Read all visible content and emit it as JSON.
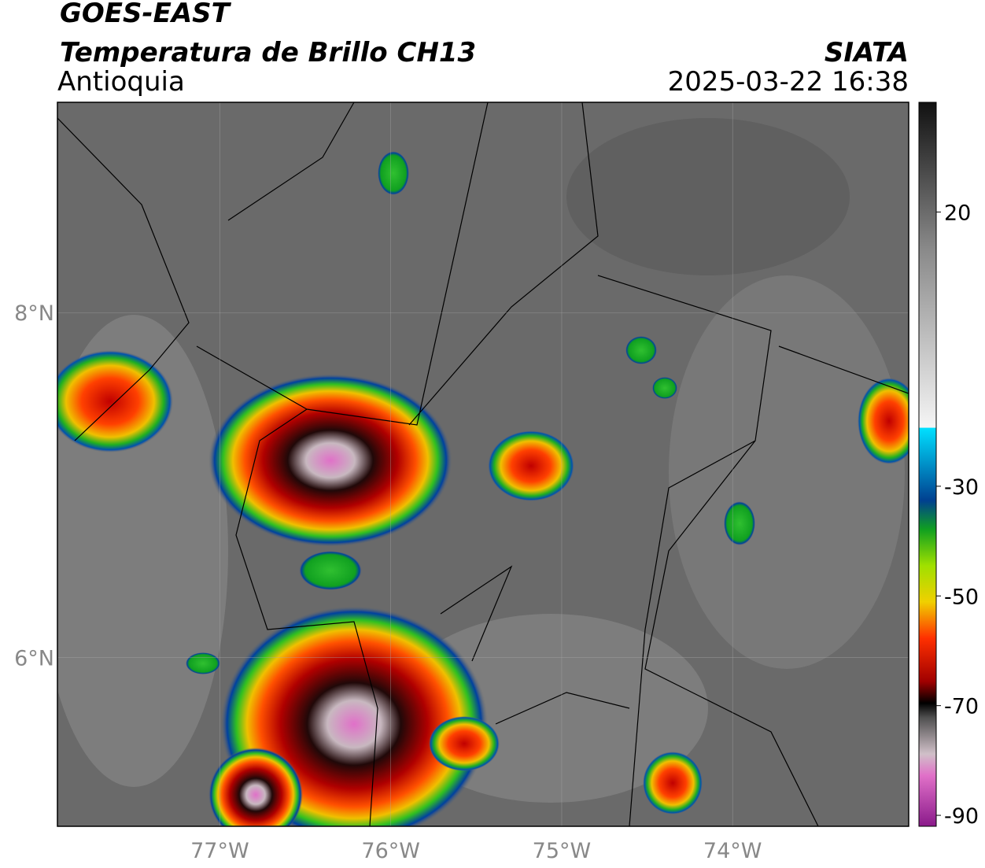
{
  "header": {
    "title": "GOES-EAST",
    "subtitle": "Temperatura de Brillo CH13",
    "region": "Antioquia",
    "source": "SIATA",
    "timestamp": "2025-03-22 16:38"
  },
  "map": {
    "xlim": [
      -77.95,
      -72.97
    ],
    "ylim": [
      5.02,
      9.22
    ],
    "xticks": [
      {
        "value": -77,
        "label": "77°W"
      },
      {
        "value": -76,
        "label": "76°W"
      },
      {
        "value": -75,
        "label": "75°W"
      },
      {
        "value": -74,
        "label": "74°W"
      }
    ],
    "yticks": [
      {
        "value": 8,
        "label": "8°N"
      },
      {
        "value": 6,
        "label": "6°N"
      }
    ]
  },
  "colorbar": {
    "clim": [
      -92,
      40
    ],
    "ticks": [
      20,
      -30,
      -50,
      -70,
      -90
    ]
  }
}
